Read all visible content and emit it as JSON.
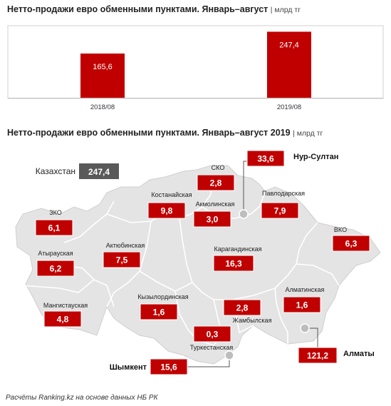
{
  "chart_data": [
    {
      "type": "bar",
      "title": "Нетто-продажи евро обменными пунктами. Январь–август",
      "unit": "| млрд тг",
      "categories": [
        "2018/08",
        "2019/08"
      ],
      "values": [
        165.6,
        247.4
      ],
      "value_labels": [
        "165,6",
        "247,4"
      ],
      "color": "#c00000"
    },
    {
      "type": "map",
      "title": "Нетто-продажи евро обменными пунктами. Январь–август 2019",
      "unit": "| млрд тг",
      "total": {
        "label": "Казахстан",
        "value": "247,4"
      },
      "regions": [
        {
          "name": "ЗКО",
          "value": "6,1"
        },
        {
          "name": "Атырауская",
          "value": "6,2"
        },
        {
          "name": "Мангистауская",
          "value": "4,8"
        },
        {
          "name": "Актюбинская",
          "value": "7,5"
        },
        {
          "name": "Костанайская",
          "value": "9,8"
        },
        {
          "name": "СКО",
          "value": "2,8"
        },
        {
          "name": "Акмолинская",
          "value": "3,0"
        },
        {
          "name": "Павлодарская",
          "value": "7,9"
        },
        {
          "name": "ВКО",
          "value": "6,3"
        },
        {
          "name": "Карагандинская",
          "value": "16,3"
        },
        {
          "name": "Кызылординская",
          "value": "1,6"
        },
        {
          "name": "Жамбылская",
          "value": "2,8"
        },
        {
          "name": "Алматинская",
          "value": "1,6"
        },
        {
          "name": "Туркестанская",
          "value": "0,3"
        }
      ],
      "cities": [
        {
          "name": "Нур-Султан",
          "value": "33,6"
        },
        {
          "name": "Алматы",
          "value": "121,2"
        },
        {
          "name": "Шымкент",
          "value": "15,6"
        }
      ],
      "colors": {
        "badge": "#c00000",
        "total_badge": "#595959",
        "map_fill": "#e4e4e4",
        "map_border": "#ffffff"
      }
    }
  ],
  "source": "Расчёты Ranking.kz на основе данных НБ РК"
}
